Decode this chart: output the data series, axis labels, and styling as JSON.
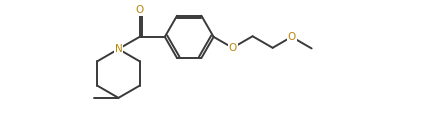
{
  "bg_color": "#ffffff",
  "line_color": "#3a3a3a",
  "N_color": "#b8860b",
  "O_color": "#b8860b",
  "line_width": 1.4,
  "figsize": [
    4.22,
    1.36
  ],
  "dpi": 100,
  "xlim": [
    0,
    9.5
  ],
  "ylim": [
    0,
    3.2
  ]
}
